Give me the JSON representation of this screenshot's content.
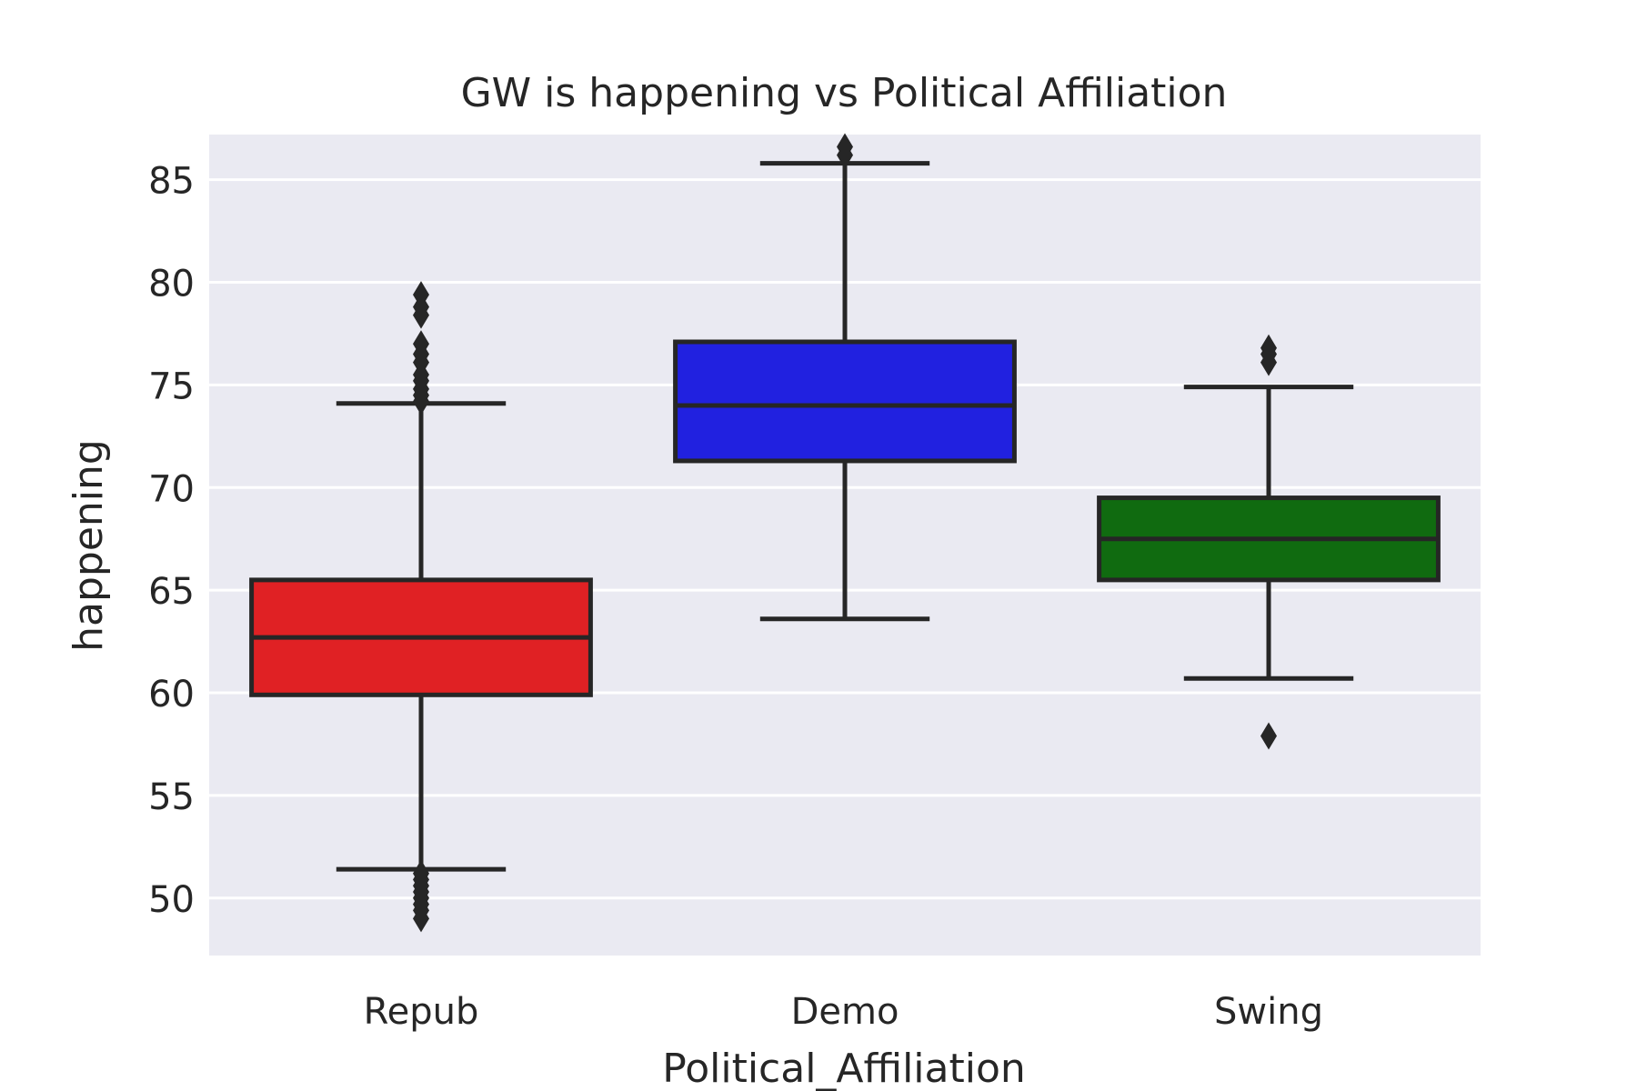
{
  "chart_data": {
    "type": "box",
    "title": "GW is happening vs Political Affiliation",
    "xlabel": "Political_Affiliation",
    "ylabel": "happening",
    "ylim": [
      47.2,
      87.2
    ],
    "yticks": [
      50,
      55,
      60,
      65,
      70,
      75,
      80,
      85
    ],
    "grid": true,
    "legend": "none",
    "colors": {
      "plot_background": "#eaeaf2",
      "grid": "#ffffff",
      "line": "#262626"
    },
    "categories": [
      "Repub",
      "Demo",
      "Swing"
    ],
    "boxes": [
      {
        "category": "Repub",
        "color": "#e02124",
        "whisker_low": 51.4,
        "q1": 59.9,
        "median": 62.7,
        "q3": 65.5,
        "whisker_high": 74.1,
        "outliers": [
          79.4,
          78.8,
          78.4,
          77.0,
          76.5,
          76.1,
          75.5,
          75.2,
          74.8,
          74.5,
          74.2,
          51.2,
          50.9,
          50.6,
          50.3,
          50.0,
          49.7,
          49.4,
          49.0
        ]
      },
      {
        "category": "Demo",
        "color": "#2121e0",
        "whisker_low": 63.6,
        "q1": 71.3,
        "median": 74.0,
        "q3": 77.1,
        "whisker_high": 85.8,
        "outliers": [
          86.6,
          86.2
        ]
      },
      {
        "category": "Swing",
        "color": "#106b10",
        "whisker_low": 60.7,
        "q1": 65.5,
        "median": 67.5,
        "q3": 69.5,
        "whisker_high": 74.9,
        "outliers": [
          76.8,
          76.5,
          76.1,
          57.9
        ]
      }
    ]
  }
}
